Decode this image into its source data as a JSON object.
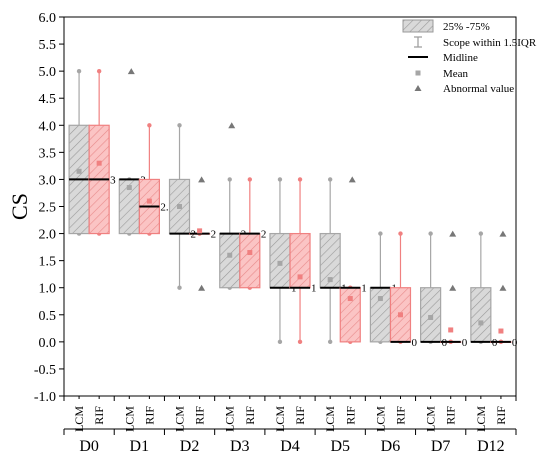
{
  "chart_data": {
    "type": "box",
    "ylabel": "CS",
    "ylim": [
      -1.0,
      6.0
    ],
    "yticks": [
      -1.0,
      -0.5,
      0.0,
      0.5,
      1.0,
      1.5,
      2.0,
      2.5,
      3.0,
      3.5,
      4.0,
      4.5,
      5.0,
      5.5,
      6.0
    ],
    "ytick_labels": [
      "-1.0",
      "-0.5",
      "0.0",
      "0.5",
      "1.0",
      "1.5",
      "2.0",
      "2.5",
      "3.0",
      "3.5",
      "4.0",
      "4.5",
      "5.0",
      "5.5",
      "6.0"
    ],
    "groups": [
      "D0",
      "D1",
      "D2",
      "D3",
      "D4",
      "D5",
      "D6",
      "D7",
      "D12"
    ],
    "series_labels": [
      "LCM",
      "RIF"
    ],
    "colors": {
      "LCM": "#a6a6a6",
      "RIF": "#f08080",
      "LCM_fill": "#d9d9d9",
      "RIF_fill": "#fbc4c4"
    },
    "legend": {
      "position": "top-right",
      "entries": [
        "25% -75%",
        "Scope within 1.5IQR",
        "Midline",
        "Mean",
        "Abnormal value"
      ]
    },
    "boxes": [
      {
        "group": "D0",
        "series": "LCM",
        "q1": 2,
        "q3": 4,
        "median": 3,
        "median_label": "3",
        "mean": 3.15,
        "whisker_low": 2,
        "whisker_high": 5,
        "outliers": []
      },
      {
        "group": "D0",
        "series": "RIF",
        "q1": 2,
        "q3": 4,
        "median": 3,
        "median_label": "3",
        "mean": 3.3,
        "whisker_low": 2,
        "whisker_high": 5,
        "outliers": []
      },
      {
        "group": "D1",
        "series": "LCM",
        "q1": 2,
        "q3": 3,
        "median": 3,
        "median_label": "3",
        "mean": 2.85,
        "whisker_low": 2,
        "whisker_high": 3,
        "outliers": [
          5
        ]
      },
      {
        "group": "D1",
        "series": "RIF",
        "q1": 2,
        "q3": 3,
        "median": 2.5,
        "median_label": "2.5",
        "mean": 2.6,
        "whisker_low": 2,
        "whisker_high": 4,
        "outliers": []
      },
      {
        "group": "D2",
        "series": "LCM",
        "q1": 2,
        "q3": 3,
        "median": 2,
        "median_label": "2",
        "mean": 2.5,
        "whisker_low": 1,
        "whisker_high": 4,
        "outliers": []
      },
      {
        "group": "D2",
        "series": "RIF",
        "q1": 2,
        "q3": 2,
        "median": 2,
        "median_label": "2",
        "mean": 2.05,
        "whisker_low": 2,
        "whisker_high": 2,
        "outliers": [
          1,
          3
        ]
      },
      {
        "group": "D3",
        "series": "LCM",
        "q1": 1,
        "q3": 2,
        "median": 2,
        "median_label": "2",
        "mean": 1.6,
        "whisker_low": 1,
        "whisker_high": 3,
        "outliers": [
          4
        ]
      },
      {
        "group": "D3",
        "series": "RIF",
        "q1": 1,
        "q3": 2,
        "median": 2,
        "median_label": "2",
        "mean": 1.65,
        "whisker_low": 1,
        "whisker_high": 3,
        "outliers": []
      },
      {
        "group": "D4",
        "series": "LCM",
        "q1": 1,
        "q3": 2,
        "median": 1,
        "median_label": "1",
        "mean": 1.45,
        "whisker_low": 0,
        "whisker_high": 3,
        "outliers": []
      },
      {
        "group": "D4",
        "series": "RIF",
        "q1": 1,
        "q3": 2,
        "median": 1,
        "median_label": "1",
        "mean": 1.2,
        "whisker_low": 0,
        "whisker_high": 3,
        "outliers": []
      },
      {
        "group": "D5",
        "series": "LCM",
        "q1": 1,
        "q3": 2,
        "median": 1,
        "median_label": "1",
        "mean": 1.15,
        "whisker_low": 0,
        "whisker_high": 3,
        "outliers": []
      },
      {
        "group": "D5",
        "series": "RIF",
        "q1": 0,
        "q3": 1,
        "median": 1,
        "median_label": "1",
        "mean": 0.8,
        "whisker_low": 0,
        "whisker_high": 1,
        "outliers": [
          3
        ]
      },
      {
        "group": "D6",
        "series": "LCM",
        "q1": 0,
        "q3": 1,
        "median": 1,
        "median_label": "1",
        "mean": 0.8,
        "whisker_low": 0,
        "whisker_high": 2,
        "outliers": []
      },
      {
        "group": "D6",
        "series": "RIF",
        "q1": 0,
        "q3": 1,
        "median": 0,
        "median_label": "0",
        "mean": 0.5,
        "whisker_low": 0,
        "whisker_high": 2,
        "outliers": []
      },
      {
        "group": "D7",
        "series": "LCM",
        "q1": 0,
        "q3": 1,
        "median": 0,
        "median_label": "0",
        "mean": 0.45,
        "whisker_low": 0,
        "whisker_high": 2,
        "outliers": []
      },
      {
        "group": "D7",
        "series": "RIF",
        "q1": 0,
        "q3": 0,
        "median": 0,
        "median_label": "0",
        "mean": 0.22,
        "whisker_low": 0,
        "whisker_high": 0,
        "outliers": [
          1,
          2
        ]
      },
      {
        "group": "D12",
        "series": "LCM",
        "q1": 0,
        "q3": 1,
        "median": 0,
        "median_label": "0",
        "mean": 0.35,
        "whisker_low": 0,
        "whisker_high": 2,
        "outliers": []
      },
      {
        "group": "D12",
        "series": "RIF",
        "q1": 0,
        "q3": 0,
        "median": 0,
        "median_label": "0",
        "mean": 0.2,
        "whisker_low": 0,
        "whisker_high": 0,
        "outliers": [
          1,
          2
        ]
      }
    ]
  }
}
